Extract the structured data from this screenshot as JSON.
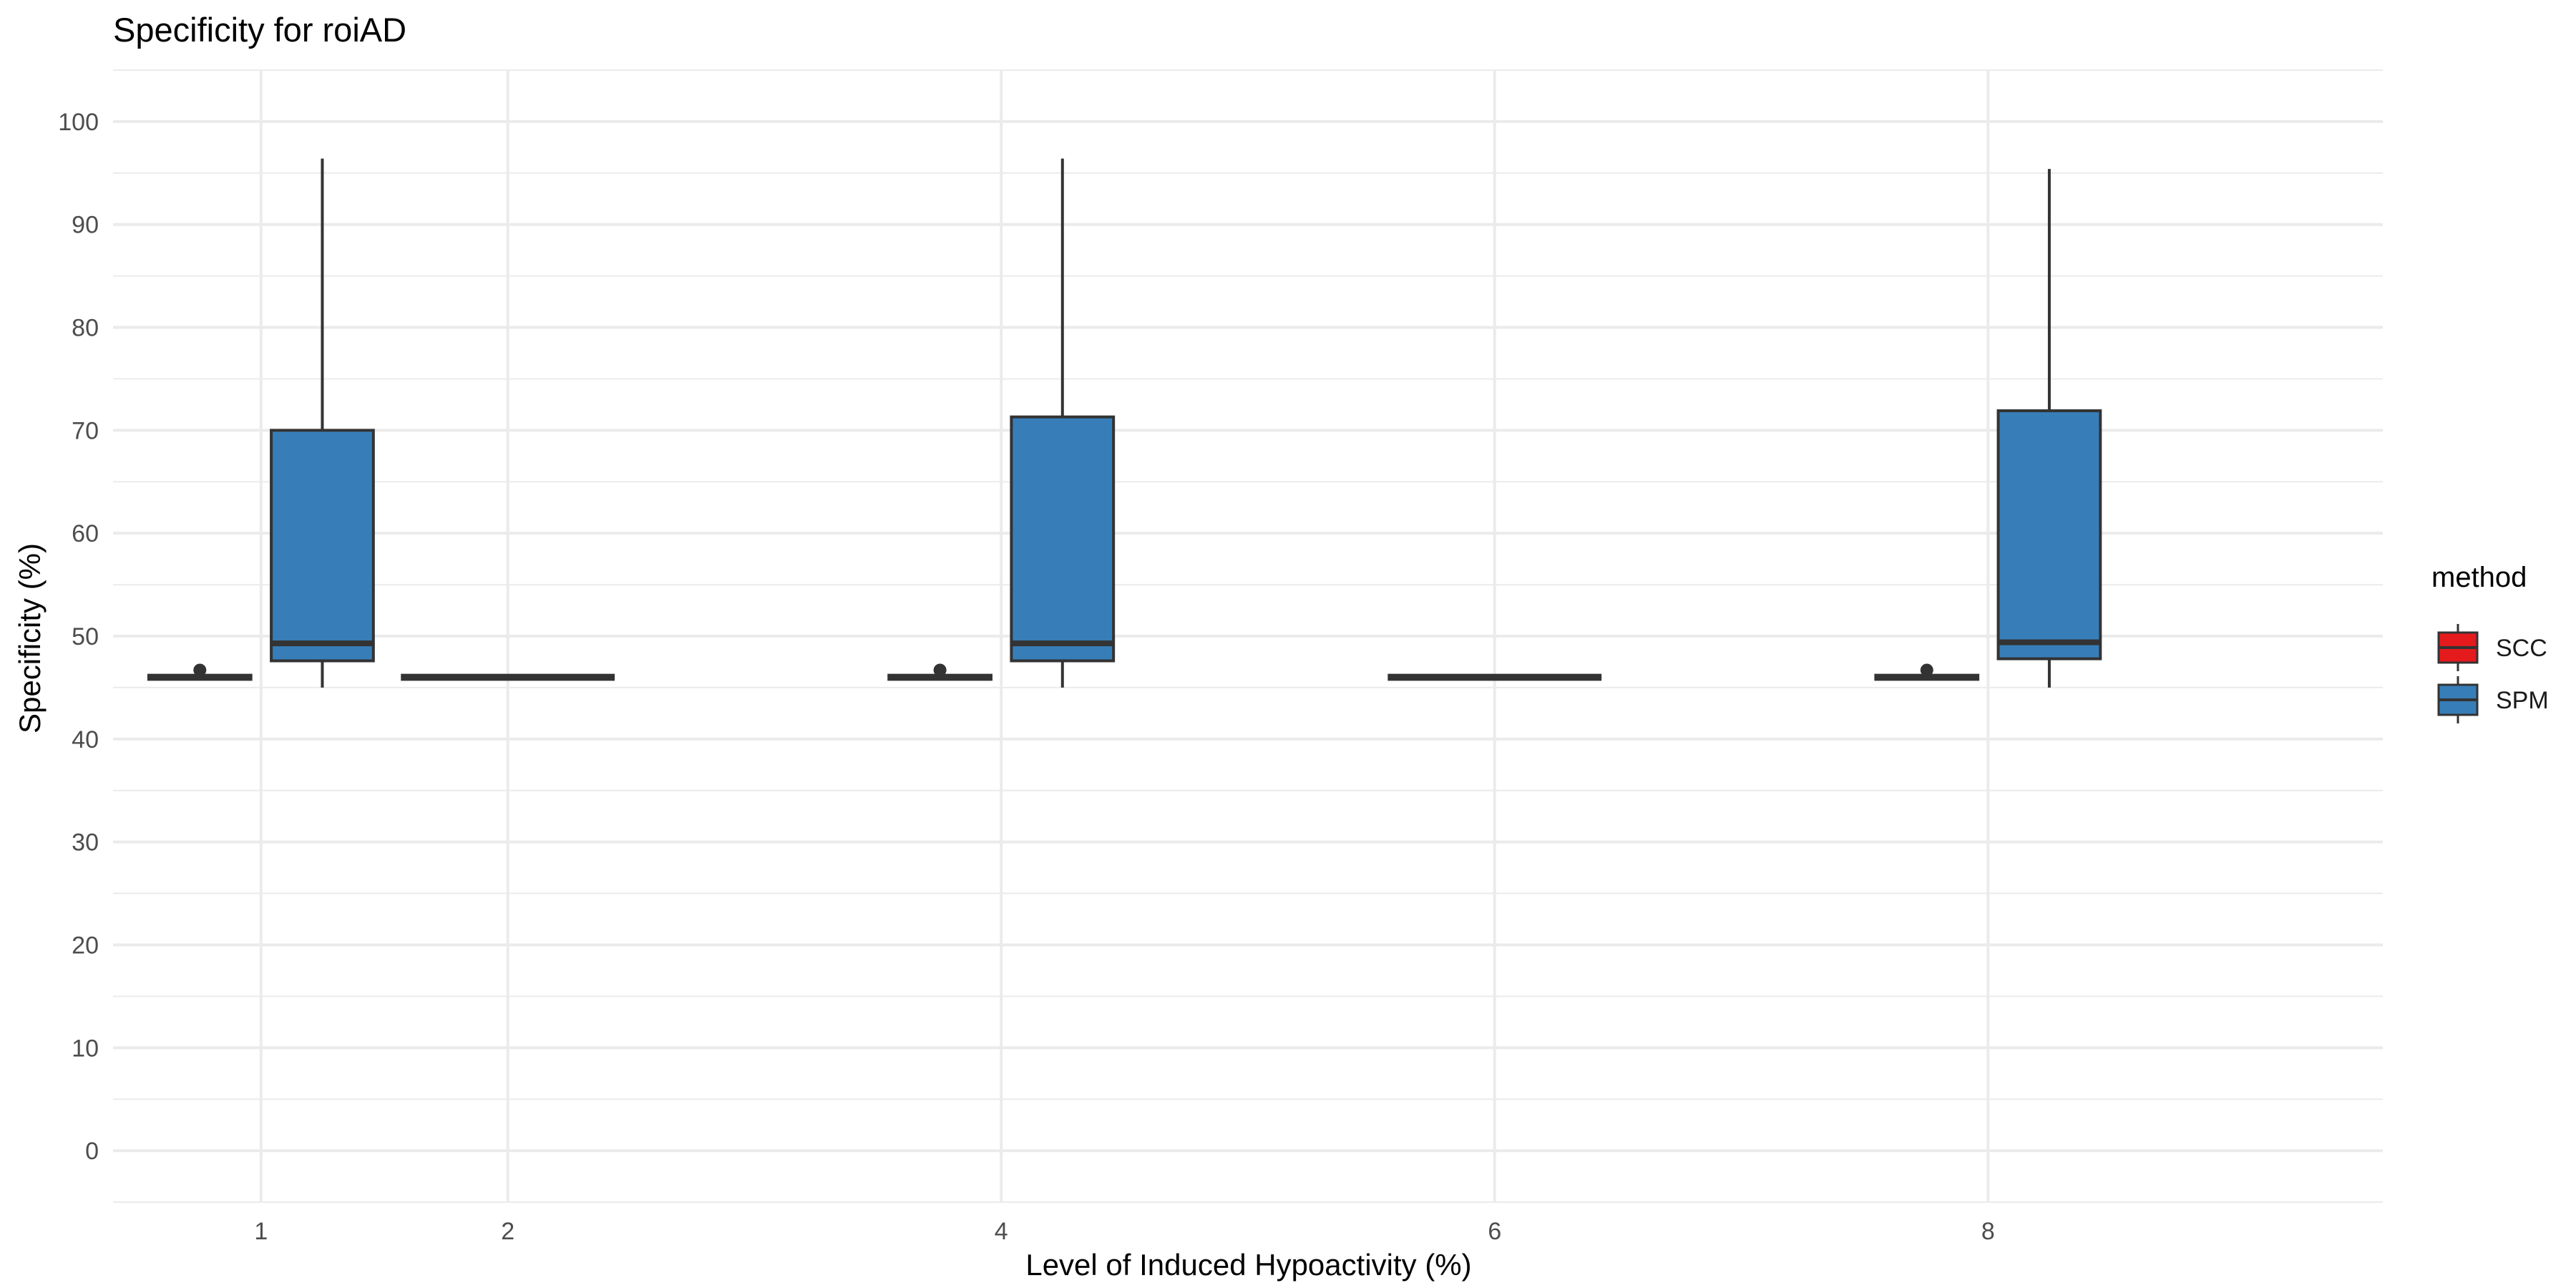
{
  "chart_data": {
    "type": "boxplot",
    "title": "Specificity for roiAD",
    "xlabel": "Level of Induced Hypoactivity (%)",
    "ylabel": "Specificity (%)",
    "categories": [
      "1",
      "2",
      "4",
      "6",
      "8"
    ],
    "ylim": [
      -5,
      105
    ],
    "yticks": [
      0,
      10,
      20,
      30,
      40,
      50,
      60,
      70,
      80,
      90,
      100
    ],
    "grid": true,
    "legend": {
      "title": "method",
      "position": "right"
    },
    "colors": {
      "SCC": "#e41a1c",
      "SPM": "#377eb8"
    },
    "series": [
      {
        "name": "SCC",
        "boxes": [
          {
            "category": "1",
            "min": 45.8,
            "q1": 45.8,
            "median": 46.0,
            "q3": 46.2,
            "max": 46.2,
            "outliers": [
              46.7
            ]
          },
          {
            "category": "2",
            "min": 45.8,
            "q1": 45.8,
            "median": 46.0,
            "q3": 46.2,
            "max": 46.2,
            "outliers": []
          },
          {
            "category": "4",
            "min": 45.8,
            "q1": 45.8,
            "median": 46.0,
            "q3": 46.2,
            "max": 46.2,
            "outliers": [
              46.7
            ]
          },
          {
            "category": "6",
            "min": 45.8,
            "q1": 45.8,
            "median": 46.0,
            "q3": 46.2,
            "max": 46.2,
            "outliers": []
          },
          {
            "category": "8",
            "min": 45.8,
            "q1": 45.8,
            "median": 46.0,
            "q3": 46.2,
            "max": 46.2,
            "outliers": [
              46.7
            ]
          }
        ]
      },
      {
        "name": "SPM",
        "boxes": [
          {
            "category": "1",
            "min": 45.0,
            "q1": 47.6,
            "median": 49.3,
            "q3": 70.0,
            "max": 96.4,
            "outliers": []
          },
          {
            "category": "4",
            "min": 45.0,
            "q1": 47.6,
            "median": 49.3,
            "q3": 71.3,
            "max": 96.4,
            "outliers": []
          },
          {
            "category": "8",
            "min": 45.0,
            "q1": 47.8,
            "median": 49.4,
            "q3": 71.9,
            "max": 95.4,
            "outliers": []
          }
        ]
      }
    ]
  }
}
